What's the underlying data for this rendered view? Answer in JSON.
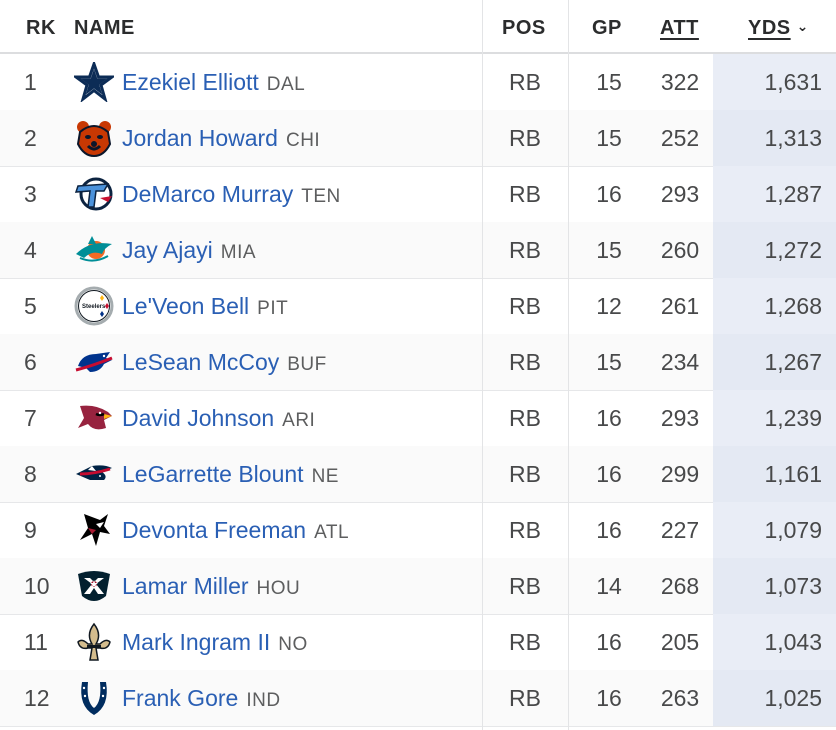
{
  "columns": {
    "rk": "RK",
    "name": "NAME",
    "pos": "POS",
    "gp": "GP",
    "att": "ATT",
    "yds": "YDS"
  },
  "sort_indicator": "chevron-down",
  "players": [
    {
      "rk": "1",
      "name": "Ezekiel Elliott",
      "team": "DAL",
      "logo": "cowboys-star",
      "pos": "RB",
      "gp": "15",
      "att": "322",
      "yds": "1,631"
    },
    {
      "rk": "2",
      "name": "Jordan Howard",
      "team": "CHI",
      "logo": "bears-head",
      "pos": "RB",
      "gp": "15",
      "att": "252",
      "yds": "1,313"
    },
    {
      "rk": "3",
      "name": "DeMarco Murray",
      "team": "TEN",
      "logo": "titans-t",
      "pos": "RB",
      "gp": "16",
      "att": "293",
      "yds": "1,287"
    },
    {
      "rk": "4",
      "name": "Jay Ajayi",
      "team": "MIA",
      "logo": "dolphins",
      "pos": "RB",
      "gp": "15",
      "att": "260",
      "yds": "1,272"
    },
    {
      "rk": "5",
      "name": "Le'Veon Bell",
      "team": "PIT",
      "logo": "steelers",
      "pos": "RB",
      "gp": "12",
      "att": "261",
      "yds": "1,268"
    },
    {
      "rk": "6",
      "name": "LeSean McCoy",
      "team": "BUF",
      "logo": "bills-buffalo",
      "pos": "RB",
      "gp": "15",
      "att": "234",
      "yds": "1,267"
    },
    {
      "rk": "7",
      "name": "David Johnson",
      "team": "ARI",
      "logo": "cardinals",
      "pos": "RB",
      "gp": "16",
      "att": "293",
      "yds": "1,239"
    },
    {
      "rk": "8",
      "name": "LeGarrette Blount",
      "team": "NE",
      "logo": "patriots",
      "pos": "RB",
      "gp": "16",
      "att": "299",
      "yds": "1,161"
    },
    {
      "rk": "9",
      "name": "Devonta Freeman",
      "team": "ATL",
      "logo": "falcons",
      "pos": "RB",
      "gp": "16",
      "att": "227",
      "yds": "1,079"
    },
    {
      "rk": "10",
      "name": "Lamar Miller",
      "team": "HOU",
      "logo": "texans",
      "pos": "RB",
      "gp": "14",
      "att": "268",
      "yds": "1,073"
    },
    {
      "rk": "11",
      "name": "Mark Ingram II",
      "team": "NO",
      "logo": "saints-fleur",
      "pos": "RB",
      "gp": "16",
      "att": "205",
      "yds": "1,043"
    },
    {
      "rk": "12",
      "name": "Frank Gore",
      "team": "IND",
      "logo": "colts-horseshoe",
      "pos": "RB",
      "gp": "16",
      "att": "263",
      "yds": "1,025"
    }
  ]
}
